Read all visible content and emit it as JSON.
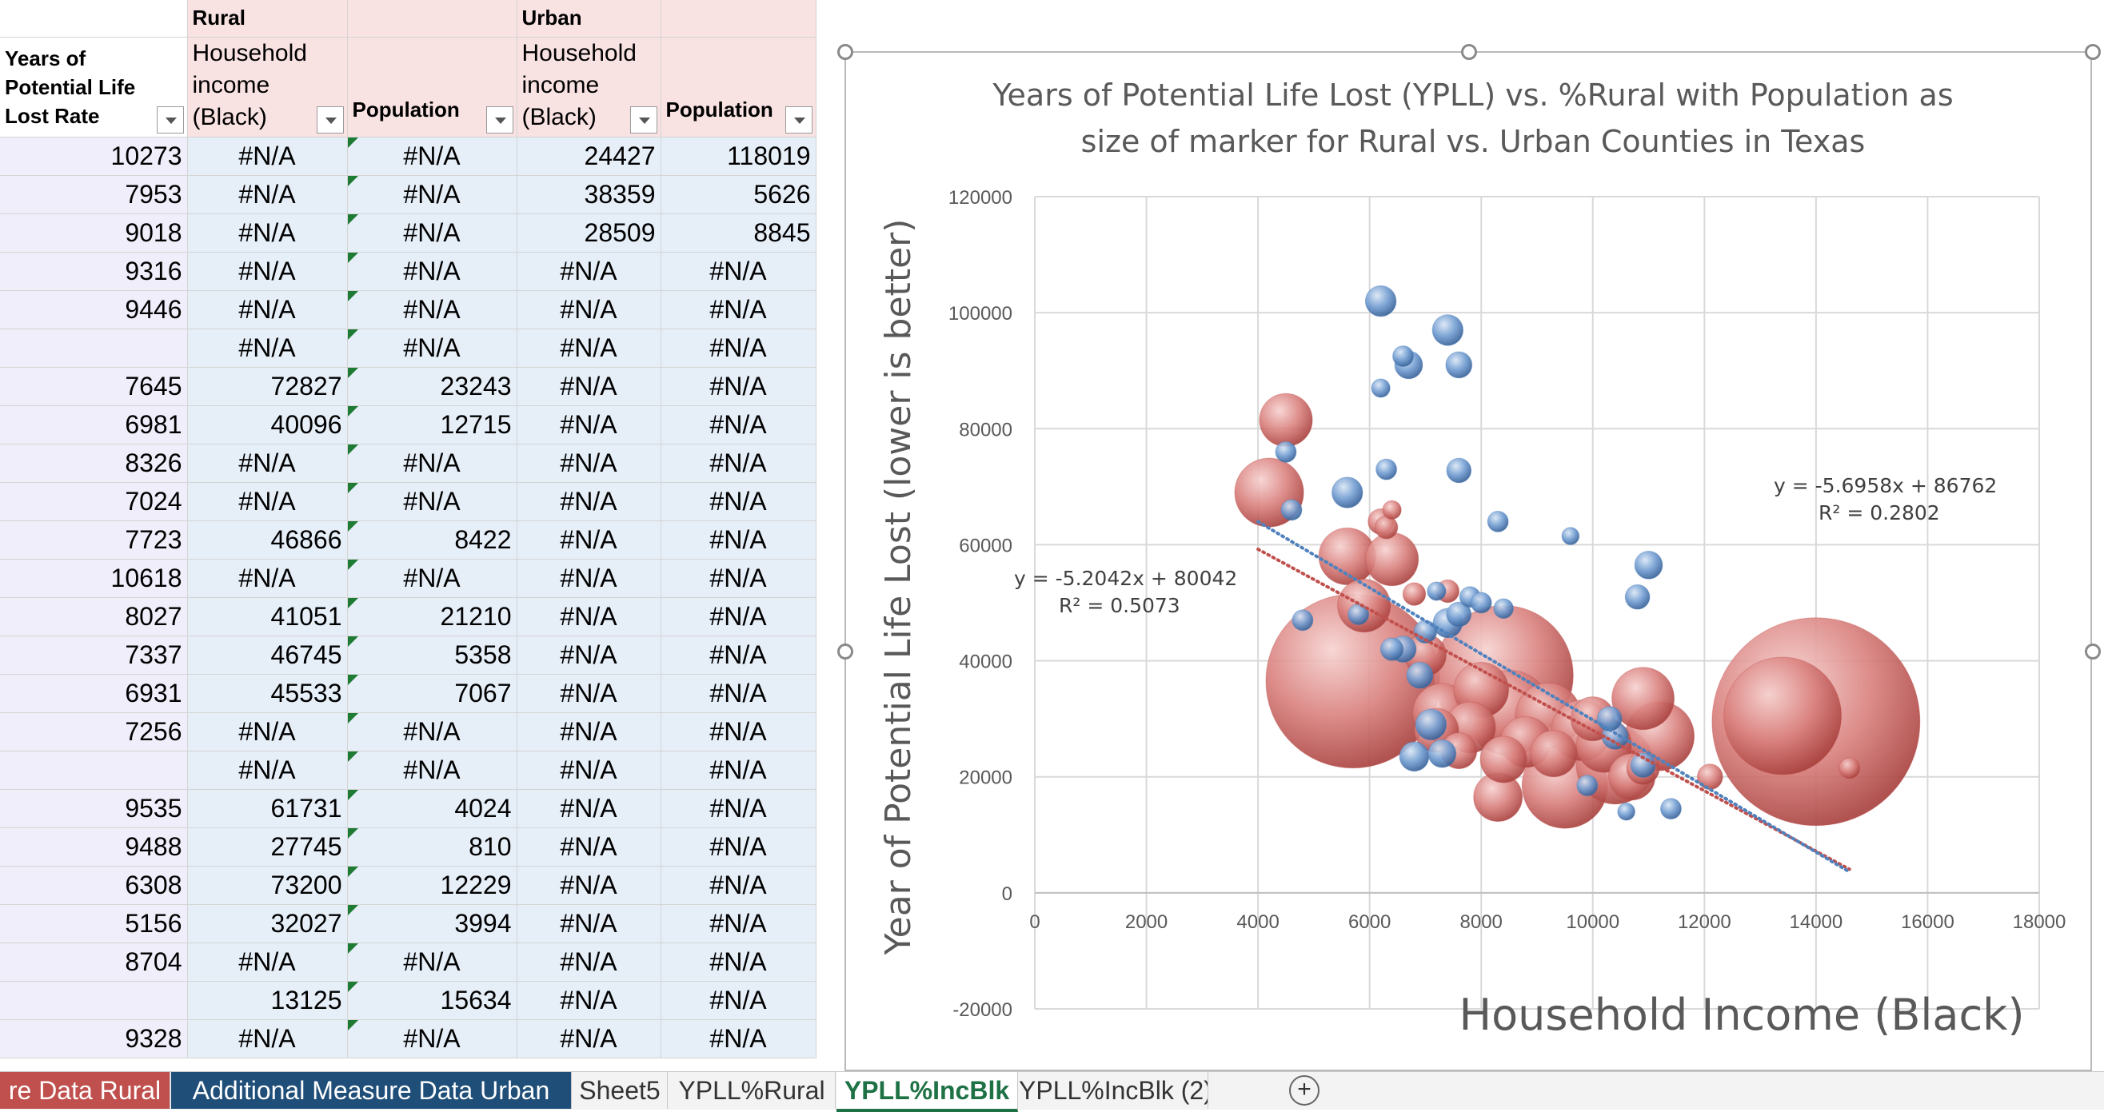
{
  "sheet": {
    "groups": {
      "rural": "Rural",
      "urban": "Urban"
    },
    "columns": [
      {
        "lines": [
          "Years of",
          "Potential Life",
          "Lost Rate"
        ]
      },
      {
        "lines": [
          "Household",
          "income",
          "(Black)"
        ]
      },
      {
        "lines": [
          "Population"
        ]
      },
      {
        "lines": [
          "Household",
          "income",
          "(Black)"
        ]
      },
      {
        "lines": [
          "Population"
        ]
      }
    ],
    "rows": [
      [
        "10273",
        "#N/A",
        "#N/A",
        "24427",
        "118019"
      ],
      [
        "7953",
        "#N/A",
        "#N/A",
        "38359",
        "5626"
      ],
      [
        "9018",
        "#N/A",
        "#N/A",
        "28509",
        "8845"
      ],
      [
        "9316",
        "#N/A",
        "#N/A",
        "#N/A",
        "#N/A"
      ],
      [
        "9446",
        "#N/A",
        "#N/A",
        "#N/A",
        "#N/A"
      ],
      [
        "",
        "#N/A",
        "#N/A",
        "#N/A",
        "#N/A"
      ],
      [
        "7645",
        "72827",
        "23243",
        "#N/A",
        "#N/A"
      ],
      [
        "6981",
        "40096",
        "12715",
        "#N/A",
        "#N/A"
      ],
      [
        "8326",
        "#N/A",
        "#N/A",
        "#N/A",
        "#N/A"
      ],
      [
        "7024",
        "#N/A",
        "#N/A",
        "#N/A",
        "#N/A"
      ],
      [
        "7723",
        "46866",
        "8422",
        "#N/A",
        "#N/A"
      ],
      [
        "10618",
        "#N/A",
        "#N/A",
        "#N/A",
        "#N/A"
      ],
      [
        "8027",
        "41051",
        "21210",
        "#N/A",
        "#N/A"
      ],
      [
        "7337",
        "46745",
        "5358",
        "#N/A",
        "#N/A"
      ],
      [
        "6931",
        "45533",
        "7067",
        "#N/A",
        "#N/A"
      ],
      [
        "7256",
        "#N/A",
        "#N/A",
        "#N/A",
        "#N/A"
      ],
      [
        "",
        "#N/A",
        "#N/A",
        "#N/A",
        "#N/A"
      ],
      [
        "9535",
        "61731",
        "4024",
        "#N/A",
        "#N/A"
      ],
      [
        "9488",
        "27745",
        "810",
        "#N/A",
        "#N/A"
      ],
      [
        "6308",
        "73200",
        "12229",
        "#N/A",
        "#N/A"
      ],
      [
        "5156",
        "32027",
        "3994",
        "#N/A",
        "#N/A"
      ],
      [
        "8704",
        "#N/A",
        "#N/A",
        "#N/A",
        "#N/A"
      ],
      [
        "",
        "13125",
        "15634",
        "#N/A",
        "#N/A"
      ],
      [
        "9328",
        "#N/A",
        "#N/A",
        "#N/A",
        "#N/A"
      ]
    ]
  },
  "tabs": [
    {
      "label": "re Data Rural",
      "style": "red"
    },
    {
      "label": "Additional Measure Data Urban",
      "style": "navy"
    },
    {
      "label": "Sheet5",
      "style": "plain"
    },
    {
      "label": "YPLL%Rural",
      "style": "plain"
    },
    {
      "label": "YPLL%IncBlk",
      "style": "active"
    },
    {
      "label": "YPLL%IncBlk (2)",
      "style": "plain"
    }
  ],
  "colors": {
    "rural_bubble": "#c0504d",
    "urban_bubble": "#4f81bd",
    "rural_trend": "#c0504d",
    "urban_trend": "#4f81bd"
  },
  "chart_data": {
    "type": "scatter",
    "bubble": true,
    "title": "Years of Potential Life Lost (YPLL) vs. %Rural with Population as size of marker for Rural vs. Urban Counties in Texas",
    "title_lines": [
      "Years of Potential Life Lost (YPLL) vs. %Rural with Population as",
      "size of marker for Rural vs. Urban Counties in Texas"
    ],
    "xlabel": "Household Income (Black)",
    "ylabel": "Year of Potential Life Lost (lower is better)",
    "xlim": [
      0,
      18000
    ],
    "ylim": [
      -20000,
      120000
    ],
    "xticks": [
      0,
      2000,
      4000,
      6000,
      8000,
      10000,
      12000,
      14000,
      16000,
      18000
    ],
    "yticks": [
      -20000,
      0,
      20000,
      40000,
      60000,
      80000,
      100000,
      120000
    ],
    "grid": true,
    "trendlines": [
      {
        "equation": "y = -5.2042x + 80042",
        "r2": "R² = 0.5073",
        "slope": -5.2042,
        "intercept": 80042,
        "x_range": [
          4000,
          14600
        ],
        "color_key": "rural_trend"
      },
      {
        "equation": "y = -5.6958x + 86762",
        "r2": "R² = 0.2802",
        "slope": -5.6958,
        "intercept": 86762,
        "x_range": [
          4000,
          14600
        ],
        "color_key": "urban_trend"
      }
    ],
    "series": [
      {
        "color_key": "rural_bubble",
        "points": [
          {
            "x": 14000,
            "y": 29500,
            "size": 1000
          },
          {
            "x": 13400,
            "y": 30500,
            "size": 320
          },
          {
            "x": 5700,
            "y": 36500,
            "size": 700
          },
          {
            "x": 8400,
            "y": 37500,
            "size": 450
          },
          {
            "x": 8500,
            "y": 31000,
            "size": 170
          },
          {
            "x": 9500,
            "y": 18500,
            "size": 170
          },
          {
            "x": 10400,
            "y": 22000,
            "size": 140
          },
          {
            "x": 11200,
            "y": 27000,
            "size": 110
          },
          {
            "x": 10900,
            "y": 33500,
            "size": 90
          },
          {
            "x": 9200,
            "y": 30500,
            "size": 100
          },
          {
            "x": 9800,
            "y": 28000,
            "size": 85
          },
          {
            "x": 10200,
            "y": 25500,
            "size": 70
          },
          {
            "x": 8000,
            "y": 35000,
            "size": 70
          },
          {
            "x": 7800,
            "y": 28500,
            "size": 60
          },
          {
            "x": 7300,
            "y": 31000,
            "size": 80
          },
          {
            "x": 8400,
            "y": 23000,
            "size": 50
          },
          {
            "x": 8800,
            "y": 26000,
            "size": 60
          },
          {
            "x": 9300,
            "y": 24000,
            "size": 50
          },
          {
            "x": 10000,
            "y": 30000,
            "size": 45
          },
          {
            "x": 10700,
            "y": 20000,
            "size": 50
          },
          {
            "x": 8300,
            "y": 16500,
            "size": 55
          },
          {
            "x": 7000,
            "y": 41000,
            "size": 40
          },
          {
            "x": 6400,
            "y": 57500,
            "size": 65
          },
          {
            "x": 5600,
            "y": 58000,
            "size": 75
          },
          {
            "x": 4200,
            "y": 69000,
            "size": 110
          },
          {
            "x": 4500,
            "y": 81500,
            "size": 65
          },
          {
            "x": 5900,
            "y": 49500,
            "size": 65
          },
          {
            "x": 7200,
            "y": 28000,
            "size": 45
          },
          {
            "x": 7600,
            "y": 24500,
            "size": 30
          },
          {
            "x": 12100,
            "y": 20000,
            "size": 15
          },
          {
            "x": 6200,
            "y": 64000,
            "size": 15
          },
          {
            "x": 6400,
            "y": 66000,
            "size": 8
          },
          {
            "x": 6800,
            "y": 51500,
            "size": 12
          },
          {
            "x": 7400,
            "y": 52000,
            "size": 12
          },
          {
            "x": 6300,
            "y": 63000,
            "size": 12
          },
          {
            "x": 10900,
            "y": 21500,
            "size": 25
          },
          {
            "x": 14600,
            "y": 21500,
            "size": 10
          }
        ]
      },
      {
        "color_key": "urban_bubble",
        "points": [
          {
            "x": 6200,
            "y": 102000,
            "size": 22
          },
          {
            "x": 7400,
            "y": 97000,
            "size": 22
          },
          {
            "x": 7600,
            "y": 91000,
            "size": 16
          },
          {
            "x": 6700,
            "y": 91000,
            "size": 18
          },
          {
            "x": 6600,
            "y": 92500,
            "size": 10
          },
          {
            "x": 6200,
            "y": 87000,
            "size": 8
          },
          {
            "x": 5600,
            "y": 69000,
            "size": 22
          },
          {
            "x": 7600,
            "y": 72800,
            "size": 14
          },
          {
            "x": 6300,
            "y": 73000,
            "size": 10
          },
          {
            "x": 4500,
            "y": 76000,
            "size": 10
          },
          {
            "x": 4600,
            "y": 66000,
            "size": 10
          },
          {
            "x": 11000,
            "y": 56500,
            "size": 18
          },
          {
            "x": 10800,
            "y": 51000,
            "size": 14
          },
          {
            "x": 8300,
            "y": 64000,
            "size": 10
          },
          {
            "x": 9600,
            "y": 61500,
            "size": 7
          },
          {
            "x": 7400,
            "y": 46500,
            "size": 20
          },
          {
            "x": 7600,
            "y": 48000,
            "size": 14
          },
          {
            "x": 7000,
            "y": 45000,
            "size": 12
          },
          {
            "x": 6600,
            "y": 42000,
            "size": 16
          },
          {
            "x": 7100,
            "y": 29000,
            "size": 22
          },
          {
            "x": 7300,
            "y": 24000,
            "size": 18
          },
          {
            "x": 6800,
            "y": 23500,
            "size": 20
          },
          {
            "x": 10300,
            "y": 30000,
            "size": 14
          },
          {
            "x": 10400,
            "y": 27000,
            "size": 16
          },
          {
            "x": 10900,
            "y": 22000,
            "size": 14
          },
          {
            "x": 11400,
            "y": 14500,
            "size": 10
          },
          {
            "x": 10600,
            "y": 14000,
            "size": 7
          },
          {
            "x": 9900,
            "y": 18500,
            "size": 10
          },
          {
            "x": 7200,
            "y": 52000,
            "size": 8
          },
          {
            "x": 7800,
            "y": 51000,
            "size": 10
          },
          {
            "x": 8000,
            "y": 50000,
            "size": 10
          },
          {
            "x": 8400,
            "y": 49000,
            "size": 9
          },
          {
            "x": 5800,
            "y": 48000,
            "size": 10
          },
          {
            "x": 6900,
            "y": 37500,
            "size": 16
          },
          {
            "x": 6400,
            "y": 42000,
            "size": 12
          },
          {
            "x": 4800,
            "y": 47000,
            "size": 10
          }
        ]
      }
    ]
  }
}
